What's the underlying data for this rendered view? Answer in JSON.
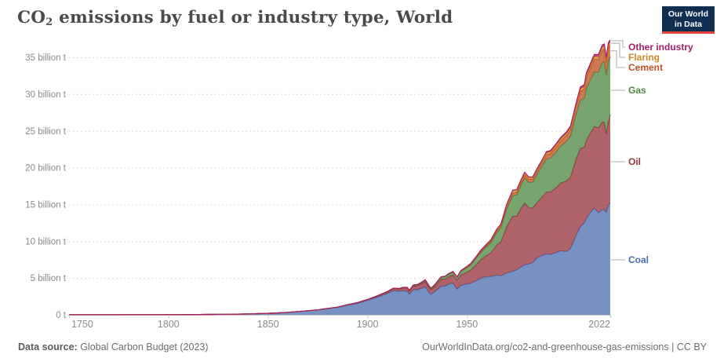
{
  "header": {
    "title_formula_base": "CO",
    "title_formula_sub": "2",
    "title_rest": " emissions by fuel or industry type, World"
  },
  "logo": {
    "line1": "Our World",
    "line2": "in Data",
    "bg_color": "#102e51",
    "accent_color": "#e5433b"
  },
  "chart_data": {
    "type": "area",
    "stacked": true,
    "title": "CO₂ emissions by fuel or industry type, World",
    "unit": "billion t",
    "grid": "horizontal-dashed",
    "legend_position": "right-edge-labels",
    "ylim": [
      0,
      37.5
    ],
    "y_ticks": {
      "values": [
        0,
        5,
        10,
        15,
        20,
        25,
        30,
        35
      ],
      "labels": [
        "0 t",
        "5 billion t",
        "10 billion t",
        "15 billion t",
        "20 billion t",
        "25 billion t",
        "30 billion t",
        "35 billion t"
      ]
    },
    "x_ticks": {
      "values": [
        1750,
        1800,
        1850,
        1900,
        1950,
        2022
      ],
      "labels": [
        "1750",
        "1800",
        "1850",
        "1900",
        "1950",
        "2022"
      ]
    },
    "x": [
      1750,
      1760,
      1770,
      1780,
      1790,
      1800,
      1810,
      1820,
      1830,
      1840,
      1850,
      1855,
      1860,
      1865,
      1870,
      1875,
      1880,
      1885,
      1890,
      1895,
      1900,
      1905,
      1910,
      1913,
      1916,
      1918,
      1920,
      1921,
      1923,
      1925,
      1927,
      1929,
      1931,
      1932,
      1934,
      1937,
      1939,
      1941,
      1943,
      1945,
      1947,
      1950,
      1952,
      1955,
      1957,
      1960,
      1962,
      1965,
      1967,
      1970,
      1973,
      1975,
      1977,
      1979,
      1981,
      1983,
      1985,
      1987,
      1990,
      1992,
      1995,
      1997,
      2000,
      2002,
      2005,
      2007,
      2009,
      2010,
      2012,
      2014,
      2016,
      2018,
      2019,
      2020,
      2021,
      2022
    ],
    "series": [
      {
        "key": "coal",
        "label": "Coal",
        "color": "#4c6fb0",
        "values": [
          0.01,
          0.01,
          0.01,
          0.02,
          0.02,
          0.03,
          0.04,
          0.05,
          0.08,
          0.12,
          0.2,
          0.26,
          0.34,
          0.44,
          0.55,
          0.65,
          0.85,
          1.0,
          1.3,
          1.55,
          1.95,
          2.4,
          2.9,
          3.3,
          3.2,
          3.3,
          3.2,
          2.8,
          3.4,
          3.4,
          3.6,
          3.8,
          3.0,
          2.8,
          3.2,
          3.9,
          3.9,
          4.2,
          4.3,
          3.5,
          4.0,
          4.2,
          4.3,
          4.7,
          5.0,
          5.2,
          5.2,
          5.4,
          5.3,
          5.7,
          5.9,
          6.1,
          6.5,
          6.8,
          6.9,
          7.1,
          7.7,
          8.0,
          8.3,
          8.2,
          8.5,
          8.7,
          8.6,
          9.0,
          10.9,
          12.0,
          12.5,
          13.1,
          13.9,
          14.5,
          13.9,
          14.3,
          14.3,
          13.9,
          14.9,
          15.2
        ]
      },
      {
        "key": "oil",
        "label": "Oil",
        "color": "#97313b",
        "values": [
          0,
          0,
          0,
          0,
          0,
          0,
          0,
          0,
          0,
          0,
          0,
          0,
          0.005,
          0.01,
          0.01,
          0.02,
          0.03,
          0.04,
          0.06,
          0.08,
          0.1,
          0.15,
          0.2,
          0.25,
          0.3,
          0.35,
          0.4,
          0.4,
          0.5,
          0.55,
          0.6,
          0.7,
          0.65,
          0.6,
          0.7,
          0.9,
          0.95,
          1.0,
          1.1,
          1.2,
          1.4,
          1.6,
          1.8,
          2.2,
          2.5,
          2.9,
          3.2,
          4.1,
          4.6,
          6.3,
          7.5,
          7.3,
          7.9,
          8.4,
          7.7,
          7.4,
          7.5,
          7.8,
          8.4,
          8.5,
          8.8,
          9.2,
          9.6,
          9.7,
          10.4,
          10.6,
          10.3,
          10.6,
          10.8,
          11.1,
          11.5,
          11.9,
          11.9,
          10.7,
          11.3,
          12.0
        ]
      },
      {
        "key": "gas",
        "label": "Gas",
        "color": "#4e8843",
        "values": [
          0,
          0,
          0,
          0,
          0,
          0,
          0,
          0,
          0,
          0,
          0,
          0,
          0,
          0,
          0,
          0,
          0,
          0.01,
          0.02,
          0.02,
          0.03,
          0.04,
          0.06,
          0.07,
          0.08,
          0.09,
          0.09,
          0.09,
          0.1,
          0.12,
          0.15,
          0.2,
          0.18,
          0.18,
          0.2,
          0.3,
          0.3,
          0.35,
          0.4,
          0.4,
          0.5,
          0.6,
          0.7,
          0.9,
          1.0,
          1.2,
          1.4,
          1.7,
          1.9,
          2.4,
          2.8,
          2.9,
          3.1,
          3.4,
          3.4,
          3.5,
          3.8,
          4.1,
          4.5,
          4.6,
          4.9,
          5.0,
          5.4,
          5.6,
          6.1,
          6.6,
          6.6,
          7.1,
          7.2,
          7.4,
          7.6,
          8.1,
          8.2,
          8.0,
          8.3,
          7.9
        ]
      },
      {
        "key": "cement",
        "label": "Cement",
        "color": "#c0501f",
        "values": [
          0,
          0,
          0,
          0,
          0,
          0,
          0,
          0,
          0,
          0,
          0,
          0,
          0,
          0,
          0,
          0,
          0,
          0,
          0,
          0,
          0,
          0,
          0,
          0,
          0,
          0,
          0.03,
          0.03,
          0.04,
          0.04,
          0.05,
          0.06,
          0.05,
          0.05,
          0.06,
          0.07,
          0.08,
          0.08,
          0.08,
          0.06,
          0.08,
          0.1,
          0.12,
          0.15,
          0.17,
          0.2,
          0.22,
          0.25,
          0.27,
          0.31,
          0.35,
          0.36,
          0.39,
          0.42,
          0.43,
          0.45,
          0.48,
          0.52,
          0.57,
          0.6,
          0.68,
          0.72,
          0.78,
          0.85,
          1.05,
          1.2,
          1.3,
          1.45,
          1.6,
          1.75,
          1.7,
          1.7,
          1.7,
          1.7,
          1.75,
          1.6
        ]
      },
      {
        "key": "flaring",
        "label": "Flaring",
        "color": "#cd8828",
        "values": [
          0,
          0,
          0,
          0,
          0,
          0,
          0,
          0,
          0,
          0,
          0,
          0,
          0,
          0,
          0,
          0,
          0,
          0,
          0,
          0,
          0,
          0,
          0,
          0,
          0,
          0,
          0,
          0,
          0,
          0,
          0,
          0,
          0,
          0,
          0,
          0,
          0,
          0,
          0,
          0,
          0.05,
          0.08,
          0.09,
          0.1,
          0.12,
          0.15,
          0.17,
          0.2,
          0.25,
          0.35,
          0.4,
          0.35,
          0.35,
          0.35,
          0.3,
          0.28,
          0.27,
          0.27,
          0.28,
          0.28,
          0.28,
          0.29,
          0.3,
          0.29,
          0.3,
          0.32,
          0.33,
          0.38,
          0.36,
          0.37,
          0.38,
          0.39,
          0.41,
          0.38,
          0.39,
          0.4
        ]
      },
      {
        "key": "other_industry",
        "label": "Other industry",
        "color": "#a31c68",
        "values": [
          0,
          0,
          0,
          0,
          0,
          0,
          0,
          0,
          0,
          0,
          0,
          0,
          0,
          0,
          0,
          0,
          0,
          0,
          0,
          0,
          0,
          0,
          0,
          0,
          0,
          0,
          0,
          0,
          0,
          0,
          0,
          0,
          0,
          0,
          0,
          0,
          0,
          0,
          0,
          0,
          0,
          0,
          0,
          0,
          0,
          0,
          0,
          0,
          0,
          0,
          0,
          0,
          0,
          0,
          0,
          0,
          0,
          0,
          0.15,
          0.16,
          0.17,
          0.18,
          0.2,
          0.21,
          0.24,
          0.25,
          0.26,
          0.27,
          0.28,
          0.29,
          0.29,
          0.3,
          0.3,
          0.3,
          0.31,
          0.31
        ]
      }
    ]
  },
  "footer": {
    "datasource_label": "Data source:",
    "datasource_value": " Global Carbon Budget (2023)",
    "credit": "OurWorldInData.org/co2-and-greenhouse-gas-emissions | CC BY"
  }
}
